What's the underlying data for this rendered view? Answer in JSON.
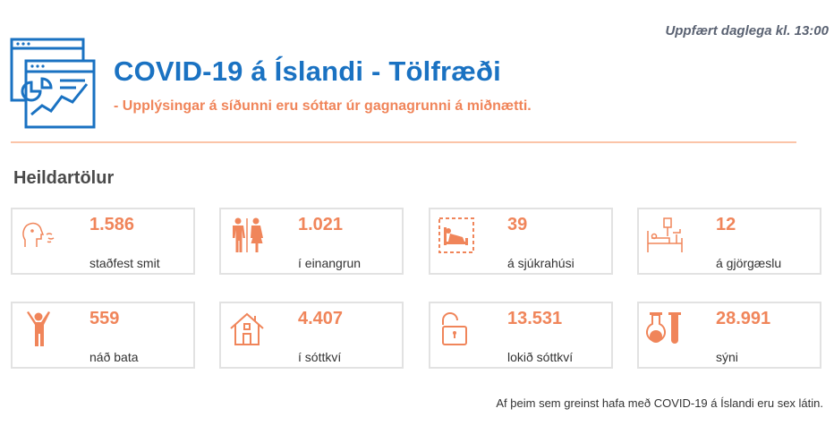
{
  "header": {
    "updated": "Uppfært daglega kl. 13:00",
    "title": "COVID-19 á Íslandi - Tölfræði",
    "subtitle": "- Upplýsingar á síðunni eru sóttar úr gagnagrunni á miðnætti."
  },
  "section": {
    "title": "Heildartölur"
  },
  "colors": {
    "accent": "#f0855a",
    "brand": "#1a72c2",
    "divider": "#fbc4a8",
    "card_border": "#e2e2e2"
  },
  "stats": [
    {
      "value": "1.586",
      "label": "staðfest smit",
      "icon": "person-cough-icon"
    },
    {
      "value": "1.021",
      "label": "í einangrun",
      "icon": "people-icon"
    },
    {
      "value": "39",
      "label": "á sjúkrahúsi",
      "icon": "hospital-bed-icon"
    },
    {
      "value": "12",
      "label": "á gjörgæslu",
      "icon": "icu-bed-icon"
    },
    {
      "value": "559",
      "label": "náð bata",
      "icon": "person-recovered-icon"
    },
    {
      "value": "4.407",
      "label": "í sóttkví",
      "icon": "house-icon"
    },
    {
      "value": "13.531",
      "label": "lokið sóttkví",
      "icon": "unlocked-padlock-icon"
    },
    {
      "value": "28.991",
      "label": "sýni",
      "icon": "test-tubes-icon"
    }
  ],
  "footer": {
    "note": "Af þeim sem greinst hafa með COVID-19 á Íslandi eru sex látin."
  }
}
